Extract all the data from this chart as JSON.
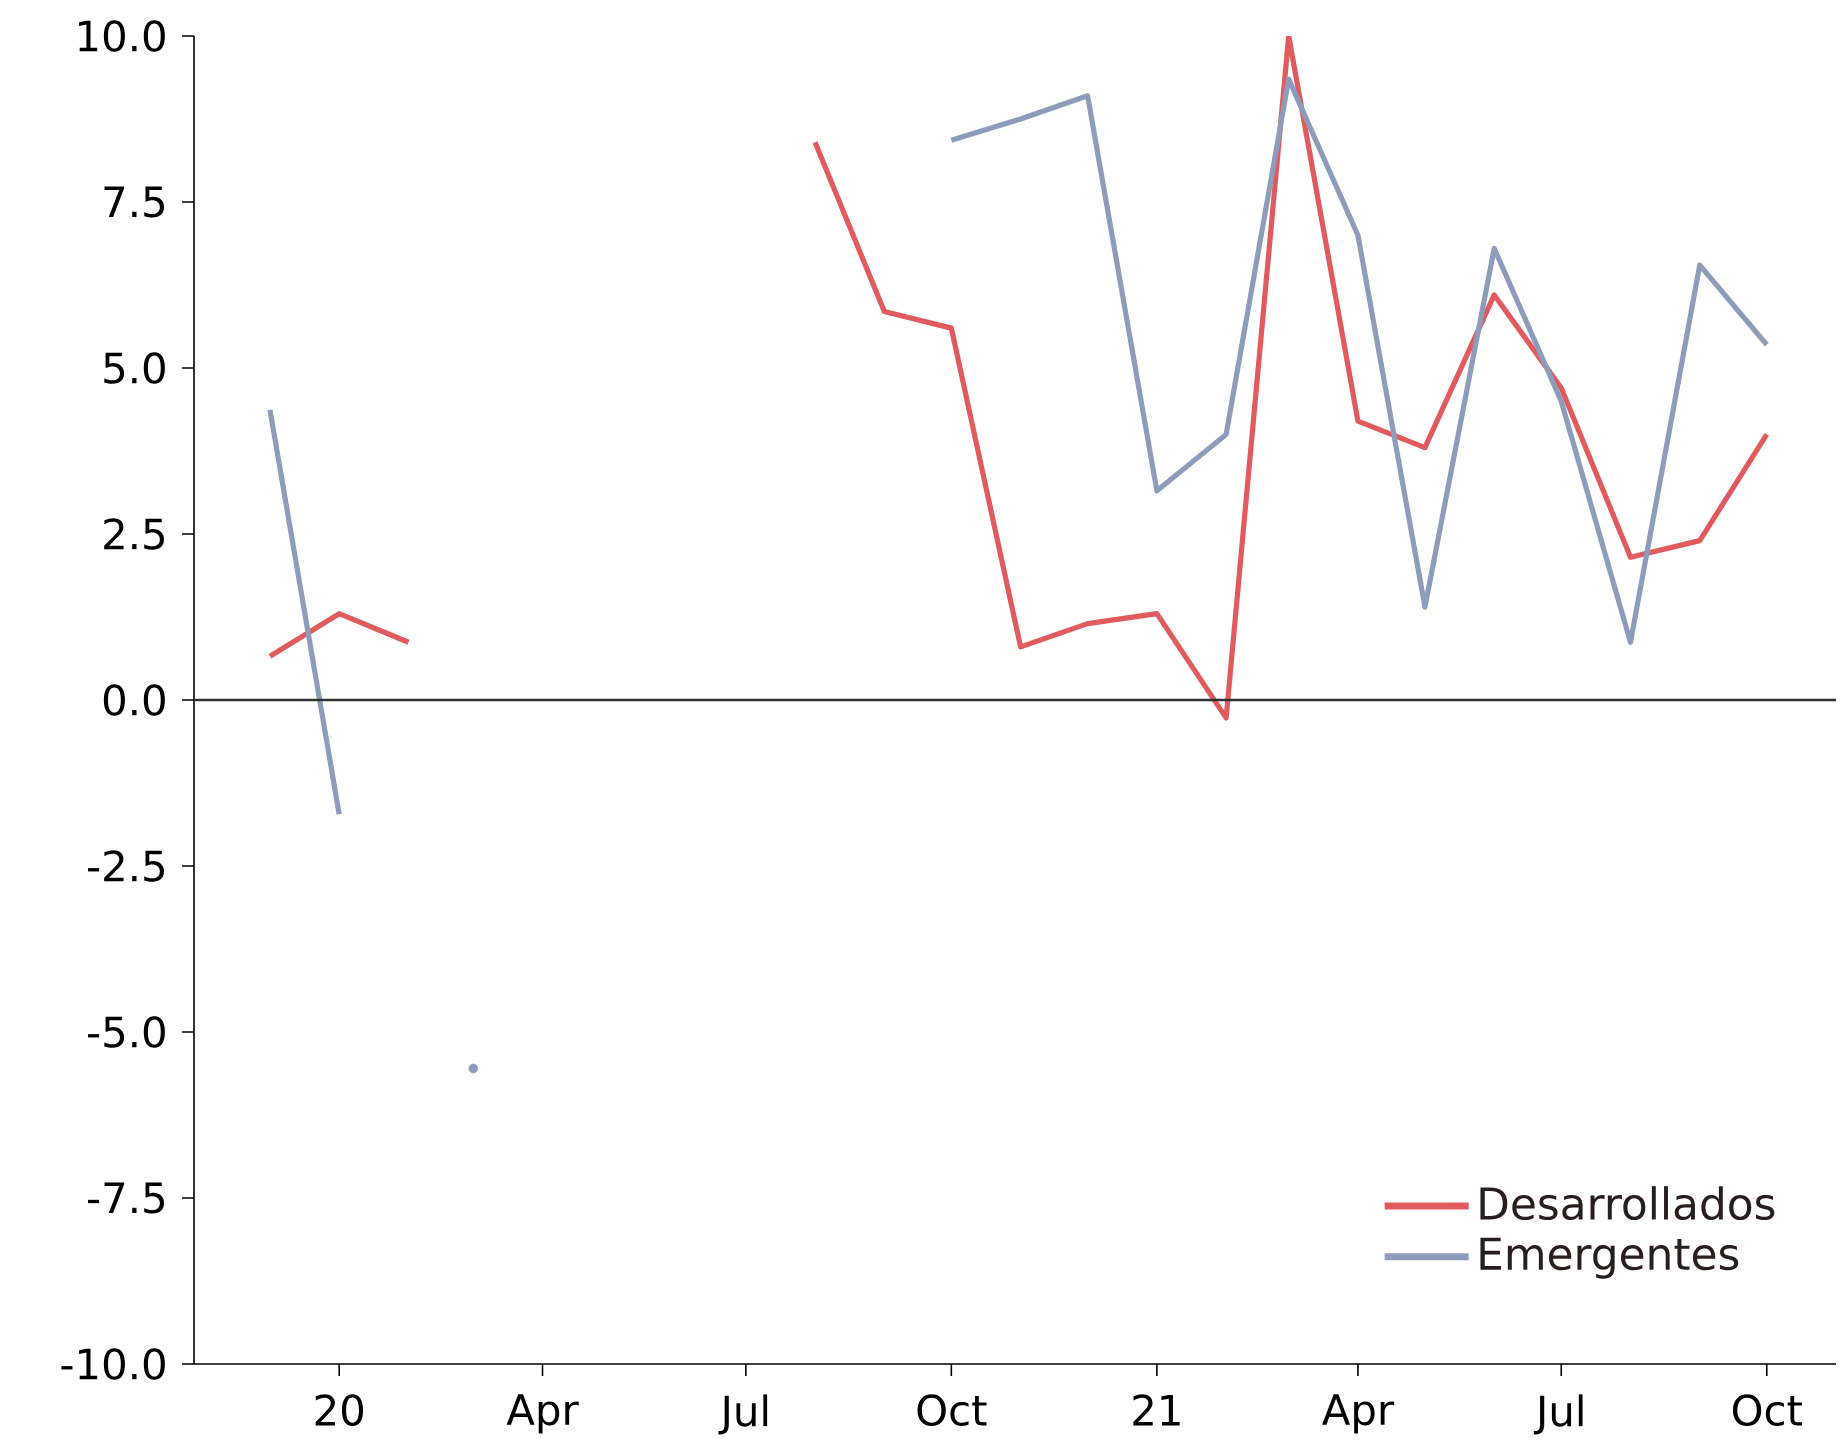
{
  "chart_data": {
    "type": "line",
    "x": [
      "2019-12",
      "2020-01",
      "2020-02",
      "2020-03",
      "2020-04",
      "2020-05",
      "2020-06",
      "2020-07",
      "2020-08",
      "2020-09",
      "2020-10",
      "2020-11",
      "2020-12",
      "2021-01",
      "2021-02",
      "2021-03",
      "2021-04",
      "2021-05",
      "2021-06",
      "2021-07",
      "2021-08",
      "2021-09",
      "2021-10"
    ],
    "series": [
      {
        "name": "Desarrollados",
        "color": "#e05a5e",
        "values": [
          0.66,
          1.3,
          0.87,
          null,
          null,
          null,
          null,
          null,
          8.4,
          5.85,
          5.6,
          0.8,
          1.15,
          1.3,
          -0.27,
          10.0,
          4.2,
          3.8,
          6.1,
          4.7,
          2.15,
          2.4,
          4.0
        ]
      },
      {
        "name": "Emergentes",
        "color": "#8e9cbc",
        "values": [
          4.37,
          -1.72,
          null,
          -5.55,
          null,
          null,
          null,
          null,
          null,
          null,
          8.43,
          8.75,
          9.1,
          3.15,
          4.0,
          9.35,
          7.0,
          1.4,
          6.8,
          4.5,
          0.87,
          6.55,
          5.35
        ]
      }
    ],
    "xlim": [
      "2019-10-28",
      "2021-11-01"
    ],
    "xticks": [
      {
        "value": "2020-01",
        "label": "20"
      },
      {
        "value": "2020-04",
        "label": "Apr"
      },
      {
        "value": "2020-07",
        "label": "Jul"
      },
      {
        "value": "2020-10",
        "label": "Oct"
      },
      {
        "value": "2021-01",
        "label": "21"
      },
      {
        "value": "2021-04",
        "label": "Apr"
      },
      {
        "value": "2021-07",
        "label": "Jul"
      },
      {
        "value": "2021-10",
        "label": "Oct"
      }
    ],
    "ylim": [
      -10,
      10
    ],
    "yticks": [
      {
        "value": -10,
        "label": "-10.0"
      },
      {
        "value": -7.5,
        "label": "-7.5"
      },
      {
        "value": -5,
        "label": "-5.0"
      },
      {
        "value": -2.5,
        "label": "-2.5"
      },
      {
        "value": 0,
        "label": "0.0"
      },
      {
        "value": 2.5,
        "label": "2.5"
      },
      {
        "value": 5,
        "label": "5.0"
      },
      {
        "value": 7.5,
        "label": "7.5"
      },
      {
        "value": 10,
        "label": "10.0"
      }
    ],
    "ref_lines": [
      {
        "axis": "y",
        "value": 0,
        "color": "#333333"
      }
    ],
    "legend": "bottom right",
    "grid": false,
    "line_style": "solid",
    "marker": "none"
  }
}
